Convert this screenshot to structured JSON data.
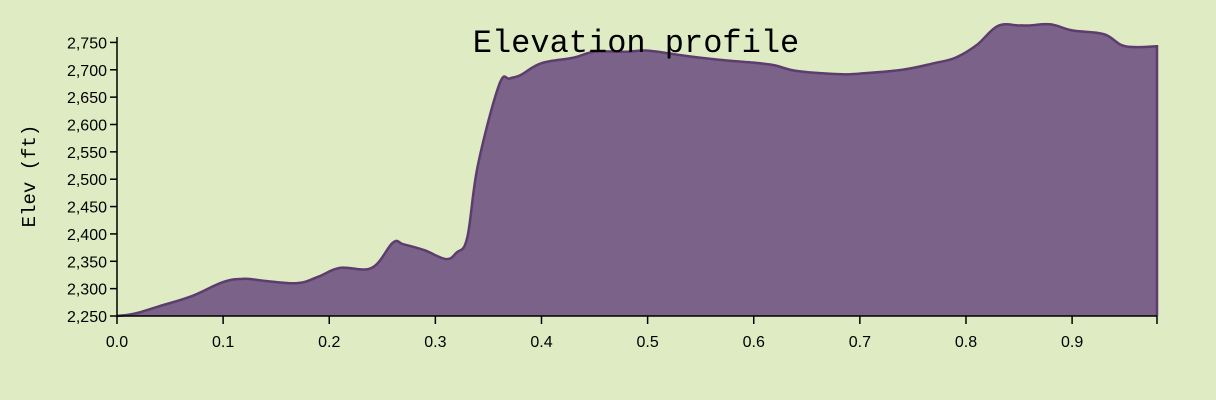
{
  "chart_data": {
    "type": "area",
    "title": "Elevation profile",
    "xlabel": "",
    "ylabel": "Elev (ft)",
    "xlim": [
      0.0,
      0.98
    ],
    "ylim": [
      2250,
      2780
    ],
    "xticks": [
      0.0,
      0.1,
      0.2,
      0.3,
      0.4,
      0.5,
      0.6,
      0.7,
      0.8,
      0.9
    ],
    "xtick_labels": [
      "0.0",
      "0.1",
      "0.2",
      "0.3",
      "0.4",
      "0.5",
      "0.6",
      "0.7",
      "0.8",
      "0.9"
    ],
    "yticks": [
      2250,
      2300,
      2350,
      2400,
      2450,
      2500,
      2550,
      2600,
      2650,
      2700,
      2750
    ],
    "ytick_labels": [
      "2,250",
      "2,300",
      "2,350",
      "2,400",
      "2,450",
      "2,500",
      "2,550",
      "2,600",
      "2,650",
      "2,700",
      "2,750"
    ],
    "grid": false,
    "fill_color": "#7b6289",
    "line_color": "#5c3d6e",
    "background_color": "#dfebc3",
    "series": [
      {
        "x": [
          0.0,
          0.01,
          0.02,
          0.04,
          0.07,
          0.1,
          0.12,
          0.14,
          0.17,
          0.19,
          0.21,
          0.24,
          0.26,
          0.27,
          0.29,
          0.31,
          0.32,
          0.33,
          0.34,
          0.36,
          0.37,
          0.38,
          0.4,
          0.43,
          0.45,
          0.48,
          0.5,
          0.53,
          0.55,
          0.58,
          0.6,
          0.62,
          0.64,
          0.68,
          0.7,
          0.74,
          0.77,
          0.79,
          0.81,
          0.83,
          0.85,
          0.86,
          0.88,
          0.9,
          0.93,
          0.95,
          0.98
        ],
        "y": [
          2250,
          2252,
          2256,
          2268,
          2286,
          2312,
          2318,
          2314,
          2310,
          2322,
          2338,
          2338,
          2384,
          2381,
          2370,
          2354,
          2366,
          2393,
          2525,
          2672,
          2684,
          2690,
          2712,
          2722,
          2733,
          2733,
          2735,
          2727,
          2722,
          2716,
          2713,
          2708,
          2698,
          2692,
          2693,
          2700,
          2712,
          2722,
          2745,
          2780,
          2781,
          2781,
          2783,
          2772,
          2765,
          2743,
          2743
        ]
      }
    ]
  }
}
